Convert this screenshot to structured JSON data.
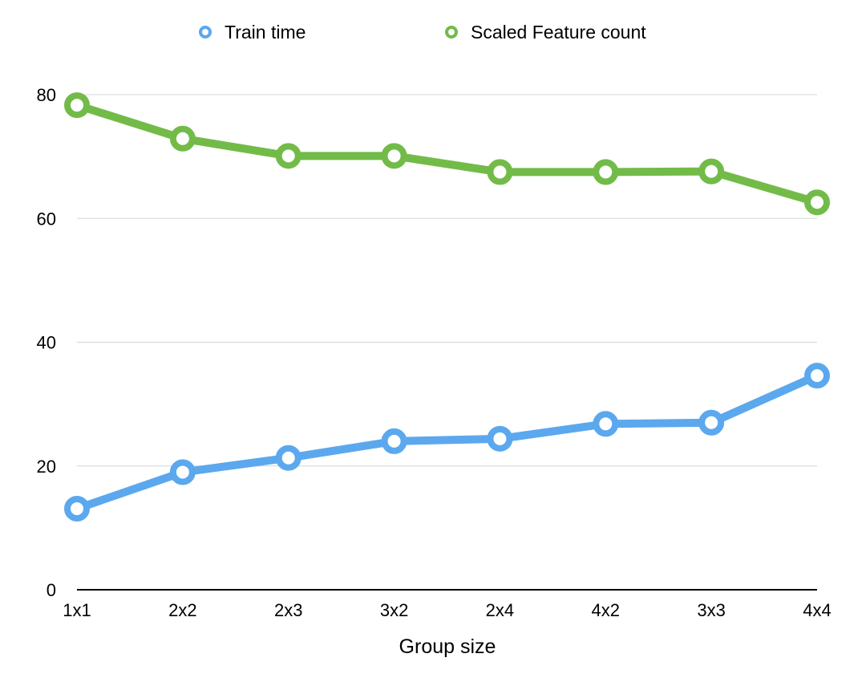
{
  "chart_data": {
    "type": "line",
    "title": "",
    "xlabel": "Group size",
    "ylabel": "",
    "categories": [
      "1x1",
      "2x2",
      "2x3",
      "3x2",
      "2x4",
      "4x2",
      "3x3",
      "4x4"
    ],
    "ylim": [
      0,
      80
    ],
    "yticks": [
      0,
      20,
      40,
      60,
      80
    ],
    "grid": true,
    "legend_position": "top-center",
    "series": [
      {
        "name": "Train time",
        "color": "#5BA8EE",
        "values": [
          13.1,
          19.0,
          21.3,
          24.0,
          24.4,
          26.8,
          27.0,
          34.6
        ]
      },
      {
        "name": "Scaled Feature count",
        "color": "#72BB48",
        "values": [
          78.3,
          72.9,
          70.1,
          70.1,
          67.5,
          67.5,
          67.6,
          62.6
        ]
      }
    ]
  }
}
